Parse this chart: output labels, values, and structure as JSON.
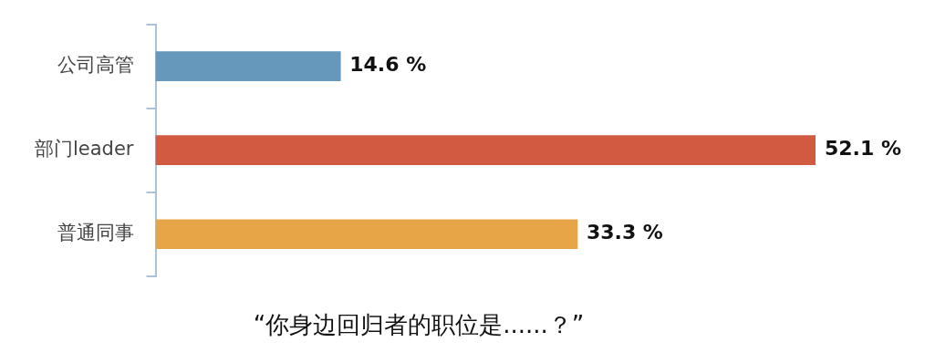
{
  "chart_data": {
    "type": "bar",
    "orientation": "horizontal",
    "title": "“你身边回归者的职位是......？”",
    "categories": [
      "公司高管",
      "部门leader",
      "普通同事"
    ],
    "values": [
      14.6,
      52.1,
      33.3
    ],
    "colors": [
      "#6598bb",
      "#d15a40",
      "#e8a548"
    ],
    "value_labels": [
      "14.6 %",
      "52.1 %",
      "33.3 %"
    ]
  }
}
